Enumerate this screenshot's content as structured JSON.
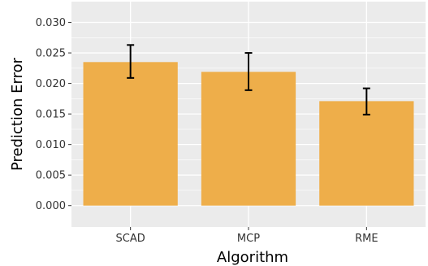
{
  "chart_data": {
    "type": "bar",
    "title": "",
    "xlabel": "Algorithm",
    "ylabel": "Prediction Error",
    "categories": [
      "SCAD",
      "MCP",
      "RME"
    ],
    "values": [
      0.0235,
      0.0219,
      0.0171
    ],
    "error_low": [
      0.0209,
      0.0189,
      0.0149
    ],
    "error_high": [
      0.0263,
      0.025,
      0.0192
    ],
    "ylim": [
      -0.0035,
      0.0334
    ],
    "yticks": [
      0.0,
      0.005,
      0.01,
      0.015,
      0.02,
      0.025,
      0.03
    ],
    "ytick_labels": [
      "0.000",
      "0.005",
      "0.010",
      "0.015",
      "0.020",
      "0.025",
      "0.030"
    ],
    "grid": true,
    "legend": "none",
    "colors": {
      "bar": "#EEAE4A",
      "panel": "#EBEBEB",
      "grid": "#FFFFFF",
      "error_bar": "#000000"
    }
  }
}
